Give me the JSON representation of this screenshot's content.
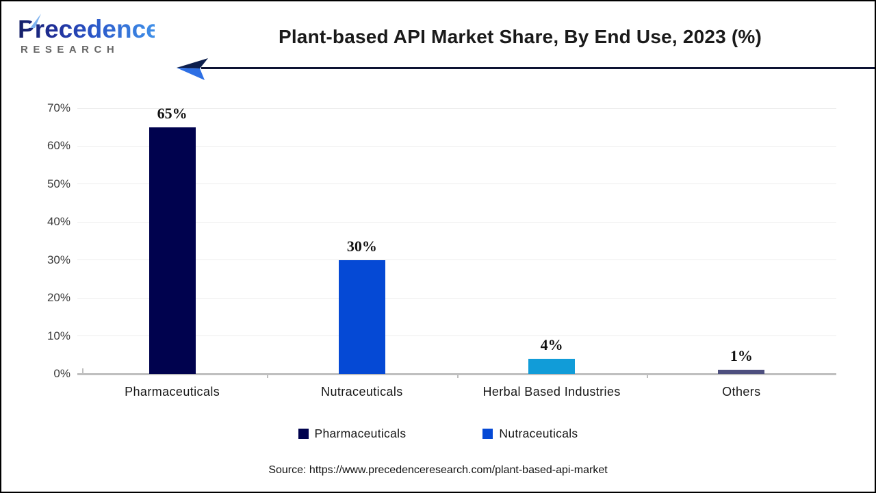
{
  "brand": {
    "name": "Precedence",
    "subname": "RESEARCH",
    "name_gradient": [
      "#141f66",
      "#3f8fe8"
    ],
    "subname_color": "#666666"
  },
  "header": {
    "title": "Plant-based API Market Share, By End Use, 2023 (%)",
    "arrow_line_color": "#0d1333",
    "arrow_head_colors": [
      "#0d1f4d",
      "#2e6fe4"
    ]
  },
  "chart_data": {
    "type": "bar",
    "title": "Plant-based API Market Share, By End Use, 2023 (%)",
    "categories": [
      "Pharmaceuticals",
      "Nutraceuticals",
      "Herbal Based Industries",
      "Others"
    ],
    "values": [
      65,
      30,
      4,
      1
    ],
    "value_labels": [
      "65%",
      "30%",
      "4%",
      "1%"
    ],
    "bar_colors": [
      "#00024E",
      "#0549D5",
      "#119CD8",
      "#4D4F7E"
    ],
    "xlabel": "",
    "ylabel": "",
    "ylim": [
      0,
      70
    ],
    "ytick_step": 10,
    "ytick_labels": [
      "0%",
      "10%",
      "20%",
      "30%",
      "40%",
      "50%",
      "60%",
      "70%"
    ],
    "grid": true,
    "gridline_color": "#ededed",
    "axis_line_color": "#bfbfbf",
    "legend_position": "bottom",
    "legend": [
      {
        "label": "Pharmaceuticals",
        "color": "#00024E"
      },
      {
        "label": "Nutraceuticals",
        "color": "#0549D5"
      }
    ]
  },
  "footer": {
    "source": "Source: https://www.precedenceresearch.com/plant-based-api-market"
  }
}
